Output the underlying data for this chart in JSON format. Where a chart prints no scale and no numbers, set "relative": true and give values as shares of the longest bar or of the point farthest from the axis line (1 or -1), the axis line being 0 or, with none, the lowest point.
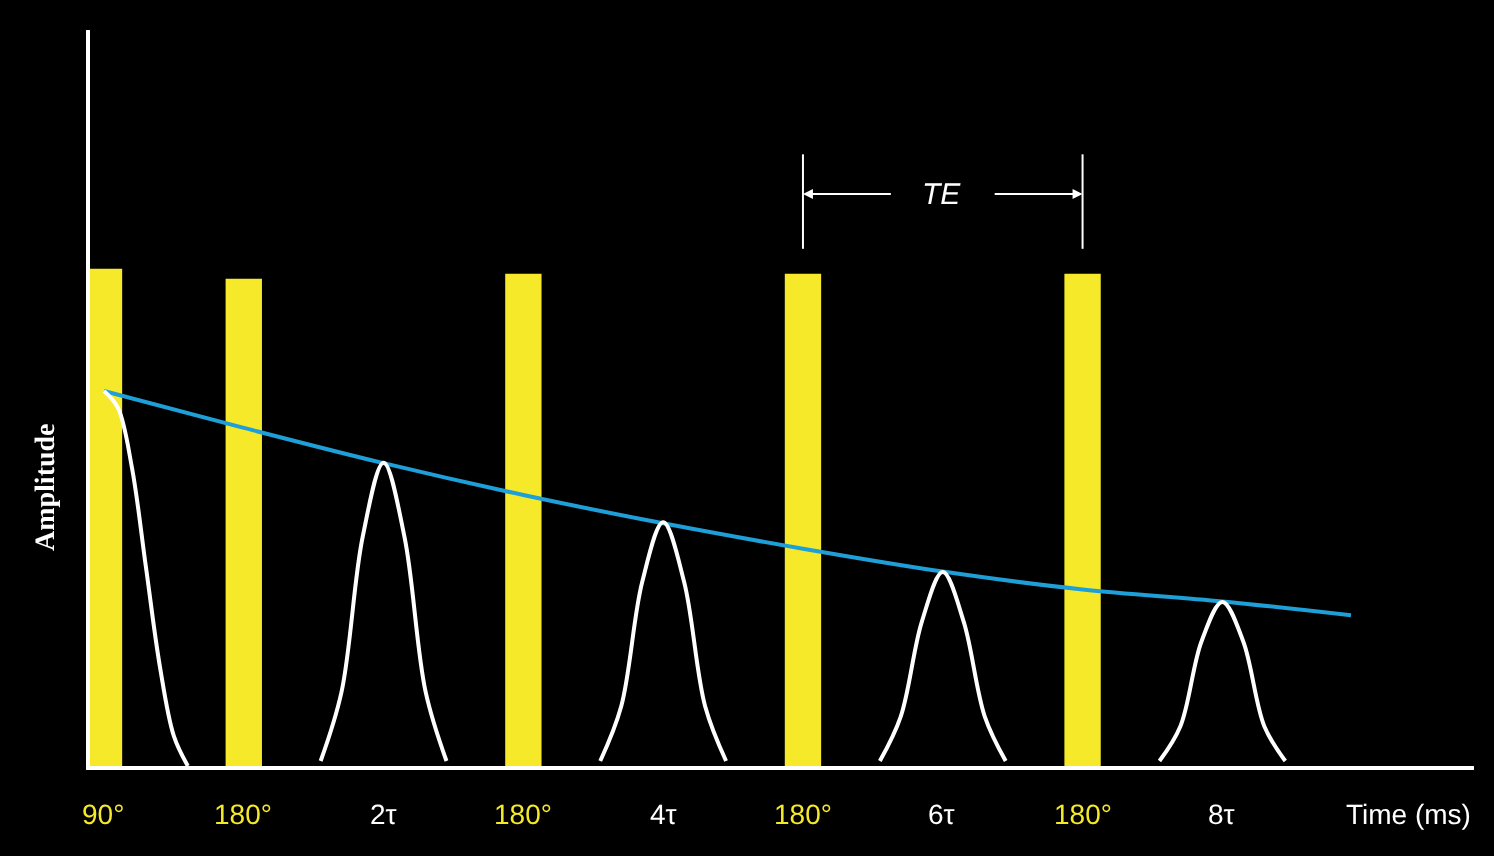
{
  "chart_data": {
    "type": "bar",
    "relative": true,
    "xlabel": "Time (ms)",
    "ylabel": "Amplitude",
    "xlim": [
      -0.1,
      9.8
    ],
    "xticks": [
      {
        "value": 2,
        "label": "2τ"
      },
      {
        "value": 4,
        "label": "4τ"
      },
      {
        "value": 6,
        "label": "6τ"
      },
      {
        "value": 8,
        "label": "8τ"
      }
    ],
    "tick_labels": "x",
    "annotations": [
      {
        "text": "90°",
        "x": 0,
        "y": 0
      },
      {
        "text": "180°",
        "x": 1,
        "y": 0
      },
      {
        "text": "180°",
        "x": 3,
        "y": 0
      },
      {
        "text": "180°",
        "x": 5,
        "y": 0
      },
      {
        "text": "180°",
        "x": 7,
        "y": 0
      },
      "TE"
    ],
    "series": [
      {
        "color": "#f5e92a",
        "x": [
          0,
          1,
          3,
          5,
          7
        ],
        "values": [
          1,
          0.98,
          0.99,
          0.99,
          0.99
        ]
      },
      {
        "type": "line",
        "color": "#1e9fd8",
        "x": [
          0,
          1,
          2,
          3,
          4,
          5,
          6,
          7,
          8,
          8.92
        ],
        "values": [
          0.754,
          0.68,
          0.609,
          0.545,
          0.488,
          0.437,
          0.391,
          0.355,
          0.331,
          0.303
        ]
      },
      {
        "type": "line",
        "color": "#ffffff",
        "x": [
          0,
          0.1,
          0.2,
          0.3,
          0.4,
          0.5,
          0.6,
          null,
          1.55,
          1.7,
          1.85,
          2,
          2.15,
          2.3,
          2.45,
          null,
          3.55,
          3.7,
          3.85,
          4,
          4.15,
          4.3,
          4.45,
          null,
          5.55,
          5.7,
          5.85,
          6,
          6.15,
          6.3,
          6.45,
          null,
          7.55,
          7.7,
          7.85,
          8,
          8.15,
          8.3,
          8.45
        ],
        "values": [
          0.754,
          0.72,
          0.6,
          0.4,
          0.2,
          0.06,
          0,
          null,
          0.01,
          0.15,
          0.46,
          0.61,
          0.46,
          0.15,
          0.01,
          null,
          0.01,
          0.12,
          0.37,
          0.49,
          0.37,
          0.12,
          0.01,
          null,
          0.01,
          0.1,
          0.29,
          0.39,
          0.29,
          0.1,
          0.01,
          null,
          0.01,
          0.08,
          0.25,
          0.33,
          0.25,
          0.08,
          0.01
        ]
      }
    ]
  }
}
